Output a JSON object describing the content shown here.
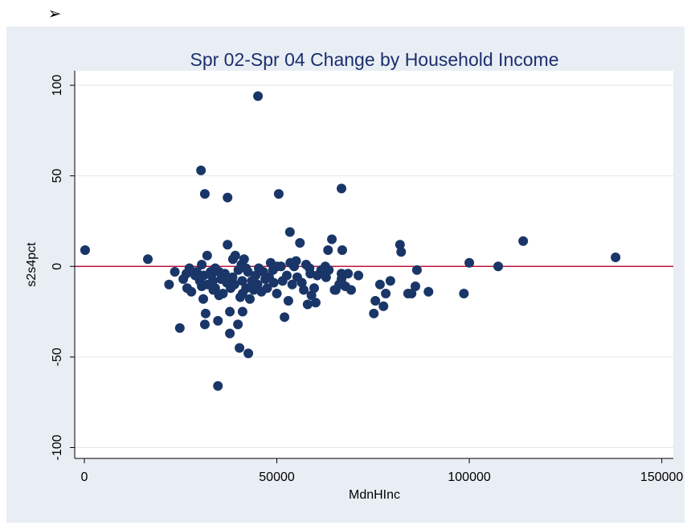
{
  "bullet": "➢",
  "chart_data": {
    "type": "scatter",
    "title": "Spr 02-Spr 04 Change by Household Income",
    "x_label": "MdnHInc",
    "y_label": "s2s4pct",
    "xlim": [
      -2500,
      153000
    ],
    "ylim": [
      -106,
      108
    ],
    "xticks": [
      0,
      50000,
      100000,
      150000
    ],
    "yticks": [
      -100,
      -50,
      0,
      50,
      100
    ],
    "grid": true,
    "reference_line": 0,
    "reference_color": "#c0143c",
    "color": "#1a3668",
    "x": [
      200,
      16500,
      22000,
      23500,
      24800,
      25700,
      26500,
      27300,
      26700,
      27800,
      29200,
      30300,
      31300,
      30500,
      30500,
      30900,
      31300,
      31500,
      31900,
      32800,
      33400,
      34000,
      34700,
      34700,
      37200,
      37200,
      37800,
      37800,
      38000,
      38600,
      39200,
      39900,
      40300,
      41100,
      41500,
      42600,
      41100,
      45100,
      45300,
      47000,
      48400,
      49200,
      50500,
      50100,
      51100,
      52000,
      52600,
      53000,
      53400,
      54500,
      56000,
      55300,
      57600,
      58000,
      58700,
      59700,
      60100,
      62600,
      62800,
      63300,
      64300,
      65300,
      66200,
      66800,
      66800,
      67000,
      67800,
      68500,
      69300,
      71200,
      66800,
      75200,
      75600,
      76800,
      77700,
      78300,
      79500,
      82000,
      82300,
      84100,
      85000,
      86000,
      86400,
      89400,
      98600,
      100000,
      107500,
      114000,
      138000,
      28800,
      30000,
      31000,
      32000,
      33000,
      34000,
      35000,
      35500,
      36000,
      36500,
      37000,
      38500,
      39000,
      40000,
      40500,
      41000,
      42000,
      42500,
      43000,
      43500,
      44000,
      44500,
      45000,
      46000,
      46500,
      47500,
      48000,
      49000,
      50000,
      51500,
      53500,
      54000,
      55000,
      56500,
      57000,
      58500,
      59000,
      60500,
      61500,
      63500,
      65000,
      40800,
      42000,
      44000,
      35000,
      33500
    ],
    "values": [
      9,
      4,
      -10,
      -3,
      -34,
      -7,
      -4,
      -1,
      -12,
      -14,
      -3,
      53,
      40,
      1,
      -11,
      -18,
      -32,
      -26,
      6,
      -3,
      -8,
      -1,
      -30,
      -66,
      38,
      12,
      -25,
      -37,
      -12,
      4,
      6,
      -32,
      -45,
      -15,
      4,
      -48,
      -25,
      94,
      -1,
      -7,
      2,
      -9,
      40,
      0,
      0,
      -28,
      -5,
      -19,
      19,
      0,
      13,
      -6,
      1,
      -21,
      -4,
      -12,
      -20,
      0,
      -6,
      9,
      15,
      -13,
      -10,
      -4,
      -7,
      9,
      -11,
      -4,
      -13,
      -5,
      43,
      -26,
      -19,
      -10,
      -22,
      -15,
      -8,
      12,
      8,
      -15,
      -15,
      -11,
      -2,
      -14,
      -15,
      2,
      0,
      14,
      5,
      -5,
      -8,
      -5,
      -10,
      -5,
      -12,
      -3,
      -7,
      -15,
      -4,
      -9,
      -6,
      -10,
      -2,
      -17,
      -8,
      -12,
      -3,
      -18,
      -8,
      -13,
      -5,
      -10,
      -14,
      -3,
      -12,
      -6,
      -2,
      -15,
      -8,
      2,
      -10,
      3,
      -9,
      -13,
      -1,
      -16,
      -5,
      -2,
      -2,
      -13,
      1,
      -1,
      -9,
      -16,
      -13
    ]
  }
}
